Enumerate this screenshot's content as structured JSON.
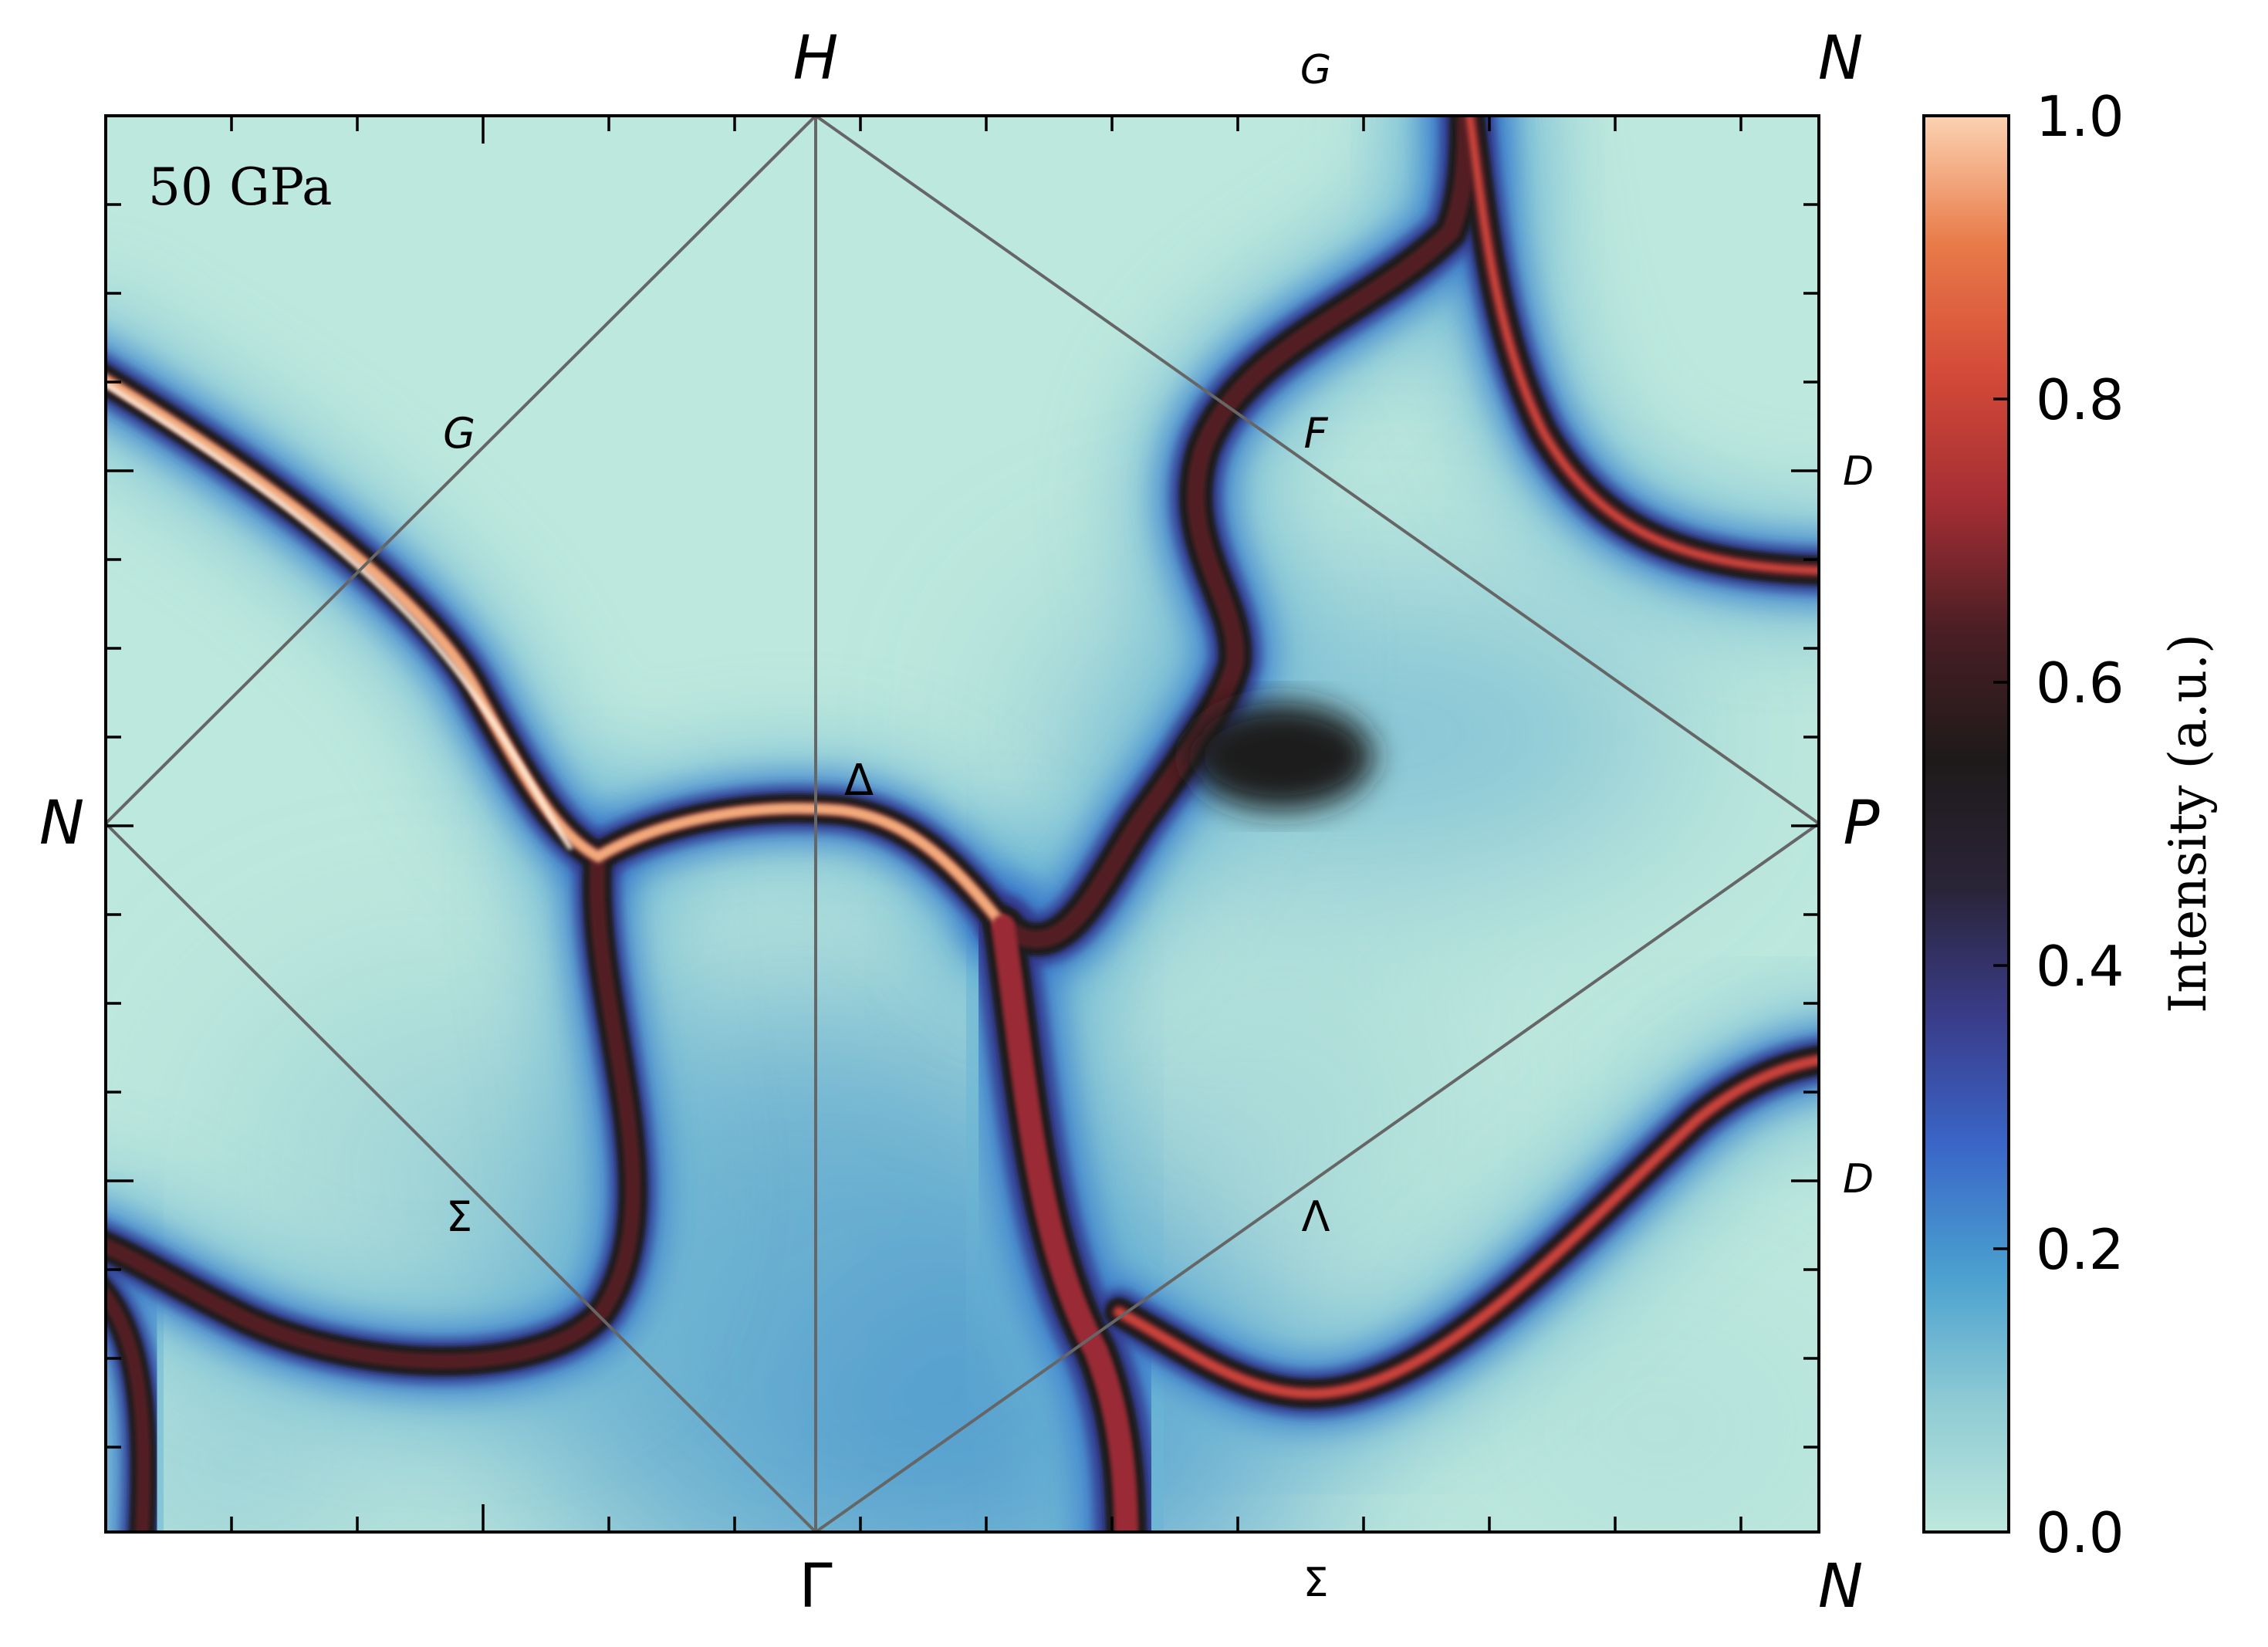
{
  "chart_data": {
    "type": "heatmap",
    "annotation": "50 GPa",
    "colorbar": {
      "label": "Intensity (a.u.)",
      "range": [
        0.0,
        1.0
      ],
      "ticks": [
        "0.0",
        "0.2",
        "0.4",
        "0.6",
        "0.8",
        "1.0"
      ],
      "colormap": [
        "#bde8dd",
        "#8fcbd4",
        "#4aa0d0",
        "#3a66c8",
        "#3a3c8a",
        "#2a2438",
        "#1e1a1a",
        "#4a1e24",
        "#a42e34",
        "#d44a38",
        "#e87a48",
        "#fcd2b2"
      ]
    },
    "corner_labels": {
      "top_left": "",
      "top_mid": "H",
      "top_right": "N",
      "mid_left": "N",
      "mid_right": "P",
      "bottom_mid": "Γ",
      "bottom_right": "N"
    },
    "point_labels": {
      "top_mid2": "G",
      "right_upper": "D",
      "right_lower": "D",
      "bottom_mid2": "Σ",
      "g_inner": "G",
      "f_inner": "F",
      "delta_inner": "Δ",
      "sigma_inner": "Σ",
      "lambda_inner": "Λ"
    },
    "bands": [
      {
        "name": "band-upper-left",
        "intensity": 1.0
      },
      {
        "name": "band-central",
        "intensity": 0.6
      },
      {
        "name": "band-upper-right",
        "intensity": 0.75
      },
      {
        "name": "band-lower-right",
        "intensity": 0.8
      },
      {
        "name": "band-lower-left",
        "intensity": 0.7
      }
    ]
  }
}
